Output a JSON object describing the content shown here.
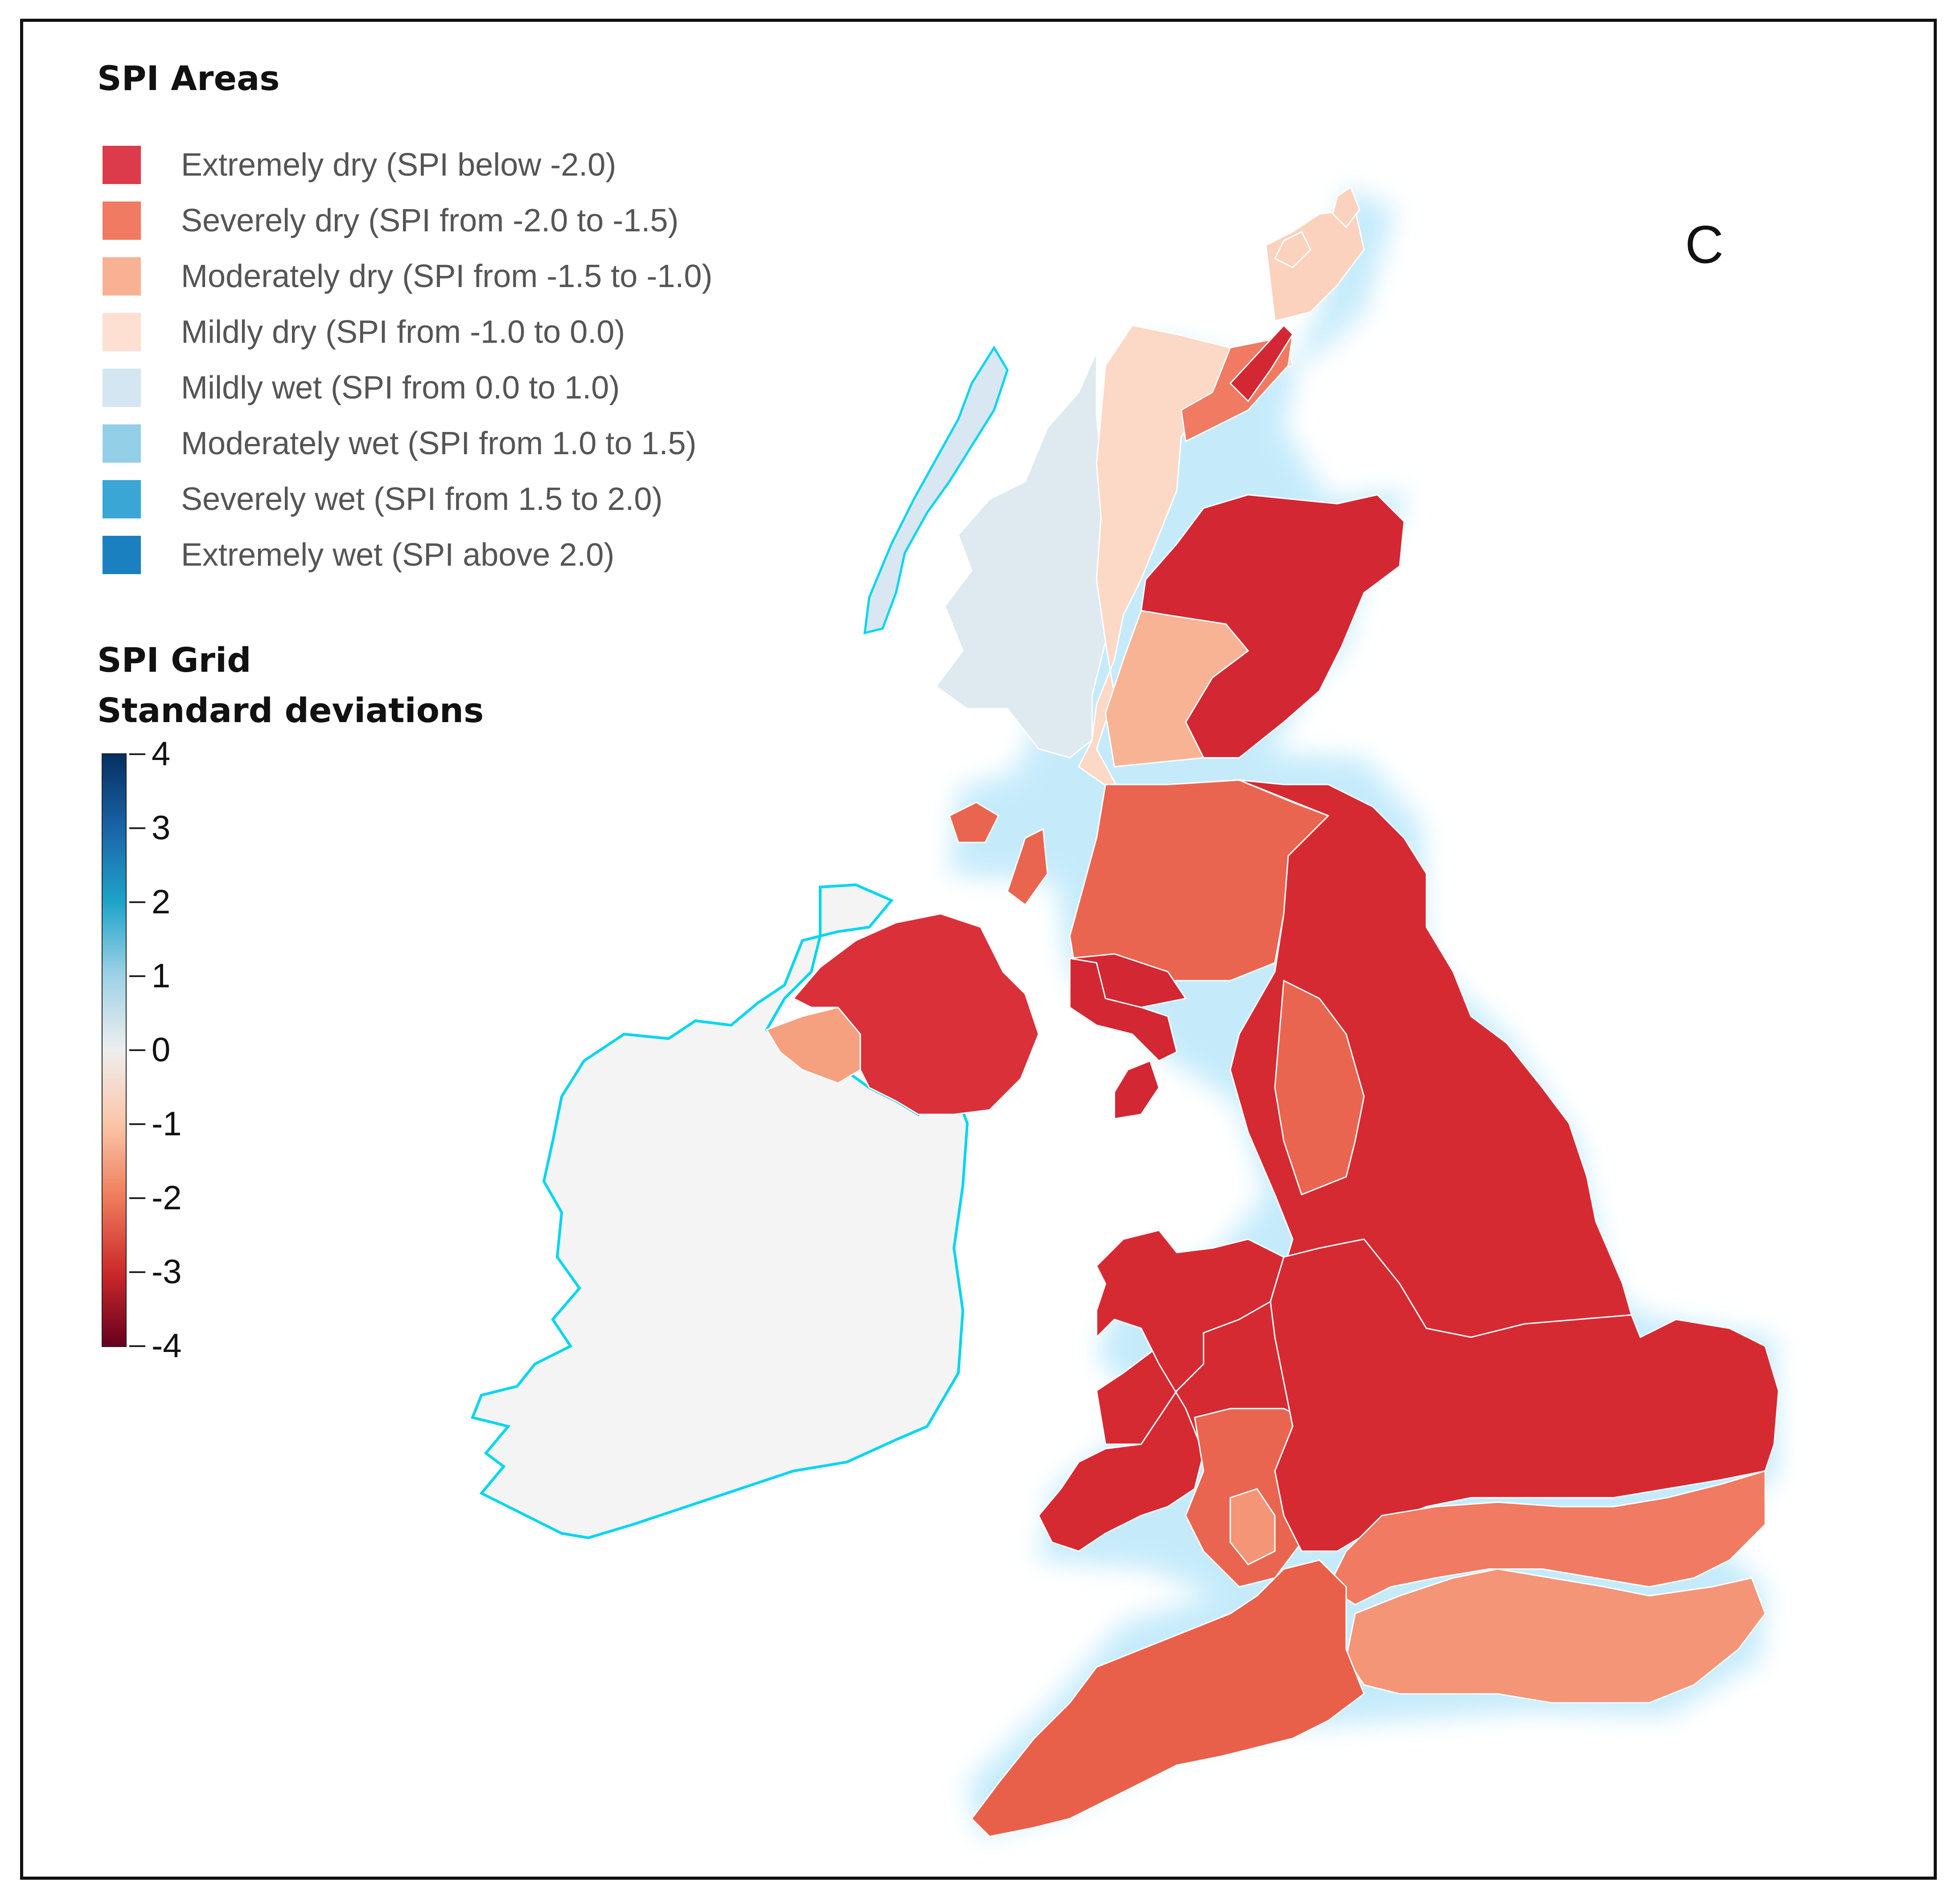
{
  "panel_letter": "C",
  "areas_legend": {
    "title": "SPI Areas",
    "items": [
      {
        "label": "Extremely dry (SPI below -2.0)",
        "color": "#dc3b4b"
      },
      {
        "label": "Severely dry (SPI from -2.0 to -1.5)",
        "color": "#f07a62"
      },
      {
        "label": "Moderately dry (SPI from -1.5 to -1.0)",
        "color": "#f9b194"
      },
      {
        "label": "Mildly dry (SPI from -1.0 to 0.0)",
        "color": "#fde0d2"
      },
      {
        "label": "Mildly wet (SPI from 0.0 to 1.0)",
        "color": "#d4e6f1"
      },
      {
        "label": "Moderately wet (SPI from 1.0 to 1.5)",
        "color": "#93cfe6"
      },
      {
        "label": "Severely wet (SPI from 1.5 to 2.0)",
        "color": "#3aa6d5"
      },
      {
        "label": "Extremely wet (SPI above 2.0)",
        "color": "#1a80c0"
      }
    ]
  },
  "grid_legend": {
    "title_line1": "SPI Grid",
    "title_line2": "Standard deviations",
    "ticks": [
      "4",
      "3",
      "2",
      "1",
      "0",
      "-1",
      "-2",
      "-3",
      "-4"
    ]
  },
  "map": {
    "regions": [
      {
        "name": "ireland",
        "fill": "#f4f4f4",
        "stroke": "#00d6f0"
      },
      {
        "name": "northern-ireland-west",
        "fill": "#f5a07f"
      },
      {
        "name": "northern-ireland-east",
        "fill": "#d9303a"
      },
      {
        "name": "scotland-west-isles",
        "fill": "#d8e7f1"
      },
      {
        "name": "scotland-west",
        "fill": "#dfe9f0"
      },
      {
        "name": "scotland-highlands",
        "fill": "#fcd8c6"
      },
      {
        "name": "scotland-northeast",
        "fill": "#d32733"
      },
      {
        "name": "scotland-central",
        "fill": "#f7b394"
      },
      {
        "name": "scotland-south",
        "fill": "#ea6550"
      },
      {
        "name": "northern-england",
        "fill": "#d62a33"
      },
      {
        "name": "wales",
        "fill": "#d62a33"
      },
      {
        "name": "southwest-england",
        "fill": "#e9604a"
      },
      {
        "name": "southern-england",
        "fill": "#f49578"
      },
      {
        "name": "east-anglia",
        "fill": "#d62a33"
      }
    ]
  }
}
